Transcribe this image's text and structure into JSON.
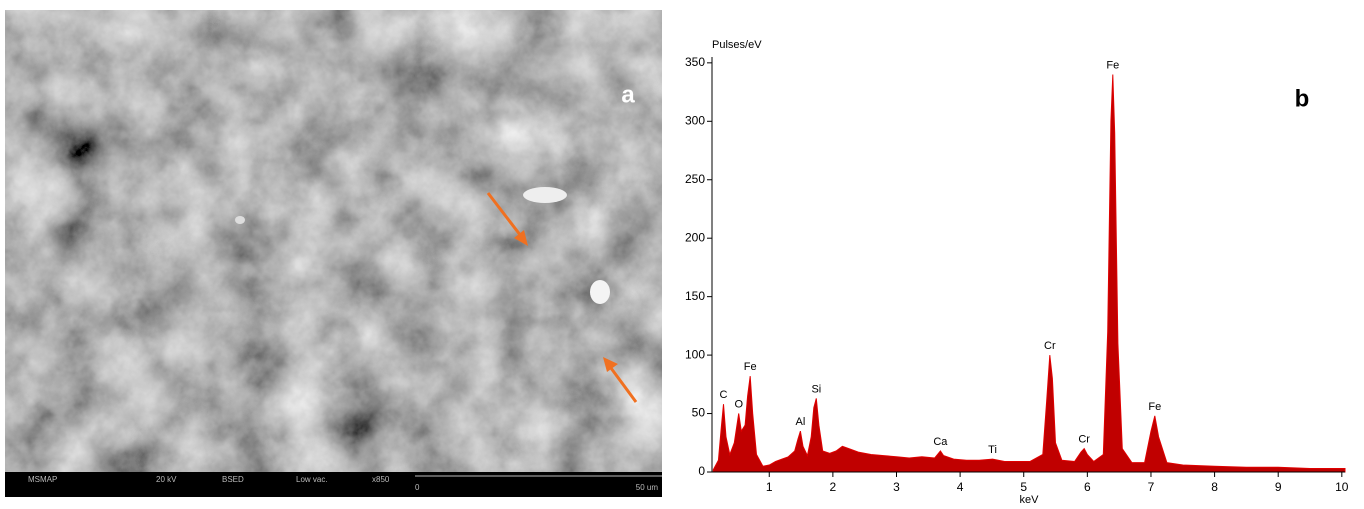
{
  "image_panel": {
    "panel_label": "a",
    "info_bar": [
      "MSMAP",
      "20 kV",
      "BSED",
      "Low vac.",
      "x850"
    ],
    "scale_start": "0",
    "scale_end": "50 um"
  },
  "chart_data": {
    "type": "area",
    "panel_label": "b",
    "y_label": "Pulses/eV",
    "x_label": "keV",
    "color": "#c00000",
    "x": [
      0.12,
      0.2,
      0.25,
      0.28,
      0.32,
      0.38,
      0.45,
      0.52,
      0.56,
      0.62,
      0.66,
      0.7,
      0.74,
      0.8,
      0.9,
      1.0,
      1.1,
      1.2,
      1.3,
      1.4,
      1.45,
      1.49,
      1.53,
      1.6,
      1.66,
      1.7,
      1.74,
      1.78,
      1.84,
      1.95,
      2.05,
      2.15,
      2.25,
      2.4,
      2.6,
      2.8,
      3.0,
      3.2,
      3.4,
      3.6,
      3.66,
      3.69,
      3.74,
      3.9,
      4.1,
      4.3,
      4.51,
      4.7,
      4.9,
      5.1,
      5.3,
      5.36,
      5.41,
      5.45,
      5.5,
      5.6,
      5.8,
      5.9,
      5.95,
      6.0,
      6.1,
      6.25,
      6.32,
      6.37,
      6.4,
      6.43,
      6.48,
      6.55,
      6.7,
      6.9,
      7.0,
      7.06,
      7.12,
      7.25,
      7.5,
      8.0,
      8.5,
      9.0,
      9.5,
      10.05
    ],
    "values": [
      2,
      10,
      40,
      58,
      30,
      15,
      25,
      50,
      35,
      40,
      65,
      82,
      50,
      15,
      5,
      6,
      9,
      11,
      13,
      18,
      28,
      35,
      22,
      14,
      30,
      55,
      63,
      40,
      18,
      16,
      18,
      22,
      20,
      17,
      15,
      14,
      13,
      12,
      13,
      12,
      16,
      18,
      14,
      11,
      10,
      10,
      11,
      9,
      9,
      9,
      15,
      60,
      100,
      80,
      25,
      10,
      9,
      17,
      20,
      15,
      9,
      15,
      120,
      300,
      340,
      290,
      110,
      20,
      8,
      8,
      35,
      48,
      30,
      8,
      6,
      5,
      4,
      4,
      3,
      3
    ],
    "xlim": [
      0.1,
      10.05
    ],
    "ylim": [
      0,
      355
    ],
    "xticks": [
      1,
      2,
      3,
      4,
      5,
      6,
      7,
      8,
      9,
      10
    ],
    "yticks": [
      0,
      50,
      100,
      150,
      200,
      250,
      300,
      350
    ],
    "annotations": [
      {
        "text": "C",
        "x": 0.28,
        "y": 58
      },
      {
        "text": "O",
        "x": 0.52,
        "y": 50
      },
      {
        "text": "Fe",
        "x": 0.7,
        "y": 82
      },
      {
        "text": "Al",
        "x": 1.49,
        "y": 35
      },
      {
        "text": "Si",
        "x": 1.74,
        "y": 63
      },
      {
        "text": "Ca",
        "x": 3.69,
        "y": 18
      },
      {
        "text": "Ti",
        "x": 4.51,
        "y": 11
      },
      {
        "text": "Cr",
        "x": 5.41,
        "y": 100
      },
      {
        "text": "Cr",
        "x": 5.95,
        "y": 20
      },
      {
        "text": "Fe",
        "x": 6.4,
        "y": 340
      },
      {
        "text": "Fe",
        "x": 7.06,
        "y": 48
      }
    ]
  }
}
